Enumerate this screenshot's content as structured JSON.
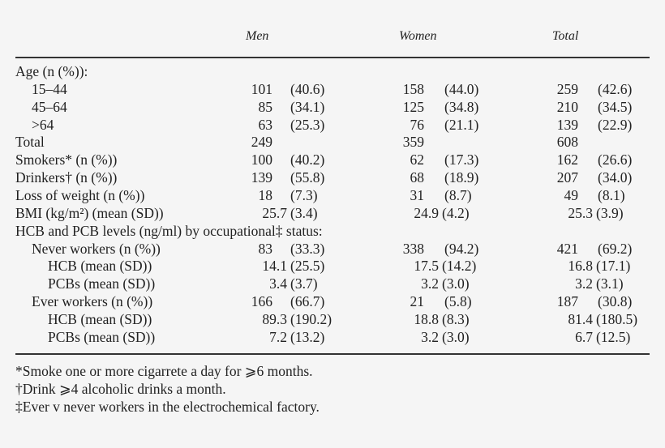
{
  "table": {
    "columns": [
      "Men",
      "Women",
      "Total"
    ],
    "rows": [
      {
        "label": "Age (n (%)):",
        "indent": 0,
        "men_n": "",
        "men_p": "",
        "women_n": "",
        "women_p": "",
        "total_n": "",
        "total_p": ""
      },
      {
        "label": "15–44",
        "indent": 1,
        "men_n": "101",
        "men_p": "(40.6)",
        "women_n": "158",
        "women_p": "(44.0)",
        "total_n": "259",
        "total_p": "(42.6)"
      },
      {
        "label": "45–64",
        "indent": 1,
        "men_n": "85",
        "men_p": "(34.1)",
        "women_n": "125",
        "women_p": "(34.8)",
        "total_n": "210",
        "total_p": "(34.5)"
      },
      {
        "label": ">64",
        "indent": 1,
        "men_n": "63",
        "men_p": "(25.3)",
        "women_n": "76",
        "women_p": "(21.1)",
        "total_n": "139",
        "total_p": "(22.9)"
      },
      {
        "label": "Total",
        "indent": 0,
        "men_n": "249",
        "men_p": "",
        "women_n": "359",
        "women_p": "",
        "total_n": "608",
        "total_p": ""
      },
      {
        "label": "Smokers* (n (%))",
        "indent": 0,
        "men_n": "100",
        "men_p": "(40.2)",
        "women_n": "62",
        "women_p": "(17.3)",
        "total_n": "162",
        "total_p": "(26.6)"
      },
      {
        "label": "Drinkers† (n (%))",
        "indent": 0,
        "men_n": "139",
        "men_p": "(55.8)",
        "women_n": "68",
        "women_p": "(18.9)",
        "total_n": "207",
        "total_p": "(34.0)"
      },
      {
        "label": "Loss of weight (n (%))",
        "indent": 0,
        "men_n": "18",
        "men_p": "(7.3)",
        "women_n": "31",
        "women_p": "(8.7)",
        "total_n": "49",
        "total_p": "(8.1)"
      },
      {
        "label": "BMI (kg/m²) (mean (SD))",
        "indent": 0,
        "men_n": "25.7",
        "men_p": "(3.4)",
        "women_n": "24.9",
        "women_p": "(4.2)",
        "total_n": "25.3",
        "total_p": "(3.9)"
      },
      {
        "label": "HCB and PCB levels (ng/ml) by occupational‡ status:",
        "indent": 0,
        "men_n": "",
        "men_p": "",
        "women_n": "",
        "women_p": "",
        "total_n": "",
        "total_p": ""
      },
      {
        "label": "Never workers (n (%))",
        "indent": 1,
        "men_n": "83",
        "men_p": "(33.3)",
        "women_n": "338",
        "women_p": "(94.2)",
        "total_n": "421",
        "total_p": "(69.2)"
      },
      {
        "label": "HCB (mean (SD))",
        "indent": 2,
        "men_n": "14.1",
        "men_p": "(25.5)",
        "women_n": "17.5",
        "women_p": "(14.2)",
        "total_n": "16.8",
        "total_p": "(17.1)"
      },
      {
        "label": "PCBs (mean (SD))",
        "indent": 2,
        "men_n": "3.4",
        "men_p": "(3.7)",
        "women_n": "3.2",
        "women_p": "(3.0)",
        "total_n": "3.2",
        "total_p": "(3.1)"
      },
      {
        "label": "Ever workers (n (%))",
        "indent": 1,
        "men_n": "166",
        "men_p": "(66.7)",
        "women_n": "21",
        "women_p": "(5.8)",
        "total_n": "187",
        "total_p": "(30.8)"
      },
      {
        "label": "HCB (mean (SD))",
        "indent": 2,
        "men_n": "89.3",
        "men_p": "(190.2)",
        "women_n": "18.8",
        "women_p": "(8.3)",
        "total_n": "81.4",
        "total_p": "(180.5)"
      },
      {
        "label": "PCBs (mean (SD))",
        "indent": 2,
        "men_n": "7.2",
        "men_p": "(13.2)",
        "women_n": "3.2",
        "women_p": "(3.0)",
        "total_n": "6.7",
        "total_p": "(12.5)"
      }
    ]
  },
  "footnotes": [
    "*Smoke one or more cigarrete a day for ⩾6 months.",
    "†Drink ⩾4 alcoholic drinks a month.",
    "‡Ever v never workers in the electrochemical factory."
  ],
  "colors": {
    "background": "#f5f5f5",
    "text": "#222222",
    "rule": "#333333"
  }
}
